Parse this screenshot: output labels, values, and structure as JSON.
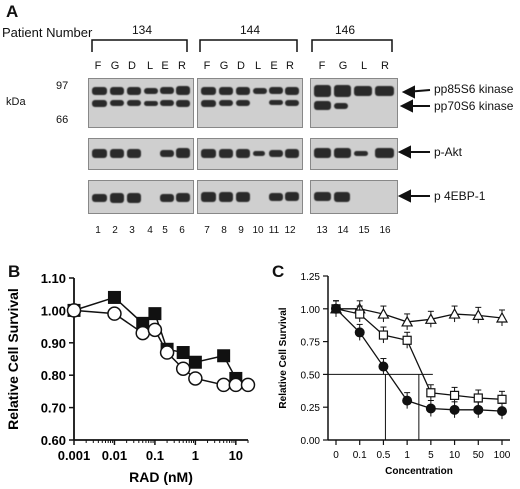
{
  "panel_a": {
    "letter": "A",
    "patient_number_label": "Patient Number",
    "groups": [
      {
        "patient": "134",
        "lanes": [
          "F",
          "G",
          "D",
          "L",
          "E",
          "R"
        ],
        "numbers": [
          "1",
          "2",
          "3",
          "4",
          "5",
          "6"
        ]
      },
      {
        "patient": "144",
        "lanes": [
          "F",
          "G",
          "D",
          "L",
          "E",
          "R"
        ],
        "numbers": [
          "7",
          "8",
          "9",
          "10",
          "11",
          "12"
        ]
      },
      {
        "patient": "146",
        "lanes": [
          "F",
          "G",
          "L",
          "R"
        ],
        "numbers": [
          "13",
          "14",
          "15",
          "16"
        ]
      }
    ],
    "kda_label": "kDa",
    "marker_97": "97",
    "marker_66": "66",
    "band_labels": [
      "pp85S6 kinase",
      "pp70S6 kinase",
      "p-Akt",
      "p 4EBP-1"
    ]
  },
  "chart_data": [
    {
      "panel": "B",
      "type": "line",
      "xlabel": "RAD (nM)",
      "ylabel": "Relative Cell Survival",
      "x_scale": "log",
      "xlim": [
        0.001,
        20
      ],
      "ylim": [
        0.6,
        1.1
      ],
      "x_ticks": [
        "0.001",
        "0.01",
        "0.1",
        "1",
        "10"
      ],
      "y_ticks": [
        "0.60",
        "0.70",
        "0.80",
        "0.90",
        "1.00",
        "1.10"
      ],
      "series": [
        {
          "marker": "filled-square",
          "x": [
            0.001,
            0.01,
            0.05,
            0.1,
            0.2,
            0.5,
            1,
            5,
            10
          ],
          "y": [
            1.0,
            1.04,
            0.96,
            0.99,
            0.88,
            0.87,
            0.84,
            0.86,
            0.79
          ]
        },
        {
          "marker": "open-circle",
          "x": [
            0.001,
            0.01,
            0.05,
            0.1,
            0.2,
            0.5,
            1,
            5,
            10,
            20
          ],
          "y": [
            1.0,
            0.99,
            0.93,
            0.94,
            0.87,
            0.82,
            0.79,
            0.77,
            0.77,
            0.77
          ]
        }
      ]
    },
    {
      "panel": "C",
      "type": "line",
      "xlabel": "Concentration",
      "ylabel": "Relative Cell Survival",
      "x_ticks": [
        "0",
        "0.1",
        "0.5",
        "1",
        "5",
        "10",
        "50",
        "100"
      ],
      "y_ticks": [
        "0.00",
        "0.25",
        "0.50",
        "0.75",
        "1.00",
        "1.25"
      ],
      "ylim": [
        0,
        1.25
      ],
      "reference_y": 0.5,
      "series": [
        {
          "marker": "open-triangle",
          "y": [
            1.0,
            1.0,
            0.96,
            0.9,
            0.92,
            0.96,
            0.95,
            0.93
          ]
        },
        {
          "marker": "open-square",
          "y": [
            1.0,
            0.96,
            0.8,
            0.76,
            0.36,
            0.34,
            0.32,
            0.31
          ]
        },
        {
          "marker": "filled-circle",
          "y": [
            1.0,
            0.82,
            0.56,
            0.3,
            0.24,
            0.23,
            0.23,
            0.22
          ]
        }
      ]
    }
  ]
}
